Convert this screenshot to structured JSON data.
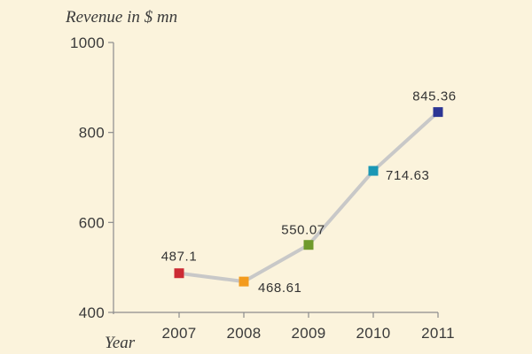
{
  "chart_data": {
    "type": "line",
    "title": "",
    "ylabel": "Revenue in $ mn",
    "xlabel": "Year",
    "categories": [
      "2007",
      "2008",
      "2009",
      "2010",
      "2011"
    ],
    "series": [
      {
        "values": [
          487.1,
          468.61,
          550.07,
          714.63,
          845.36
        ]
      }
    ],
    "value_labels": [
      "487.1",
      "468.61",
      "550.07",
      "714.63",
      "845.36"
    ],
    "ylim": [
      400,
      1000
    ],
    "yticks": [
      400,
      600,
      800,
      1000
    ],
    "ytick_labels": [
      "400",
      "600",
      "800",
      "1000"
    ],
    "grid": false,
    "legend": "none",
    "line_color": "#c8c8c8",
    "marker_colors": [
      "#cc2b34",
      "#f39b1e",
      "#6f9a2c",
      "#1a97b5",
      "#2c3594"
    ],
    "axis_color": "#8c8c8c",
    "background_color": "#fbf3dc"
  }
}
